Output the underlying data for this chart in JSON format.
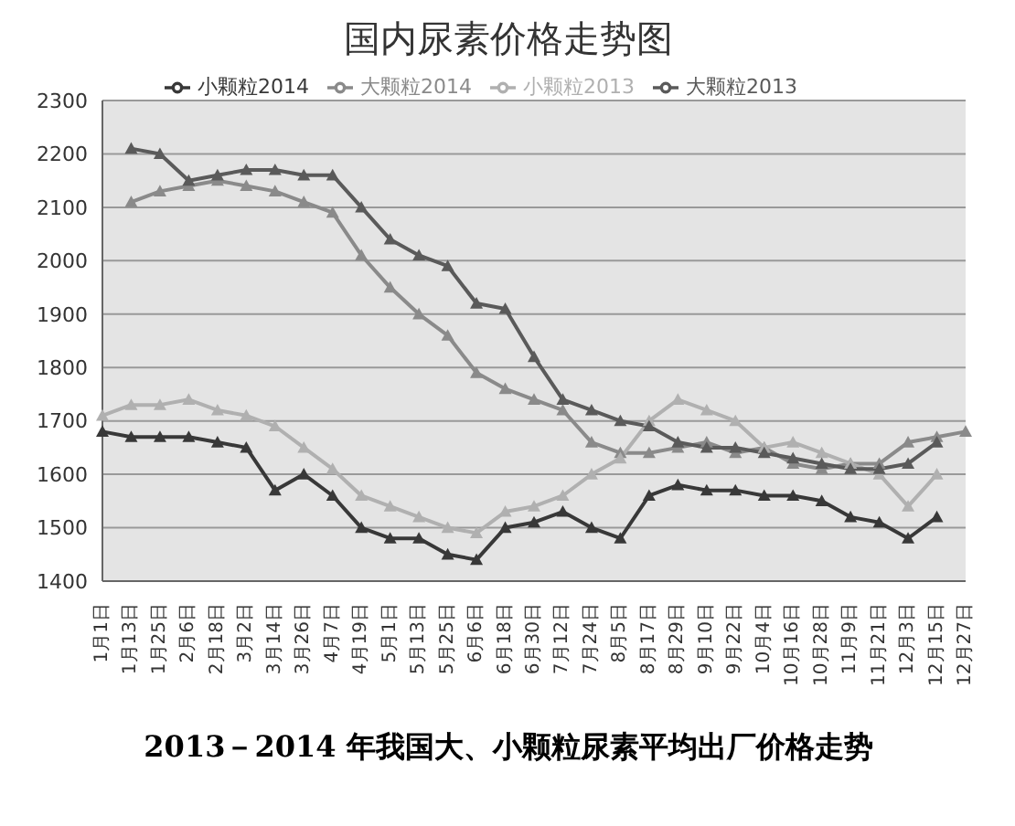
{
  "chart_data": {
    "type": "line",
    "title": "国内尿素价格走势图",
    "categories": [
      "1月1日",
      "1月13日",
      "1月25日",
      "2月6日",
      "2月18日",
      "3月2日",
      "3月14日",
      "3月26日",
      "4月7日",
      "4月19日",
      "5月1日",
      "5月13日",
      "5月25日",
      "6月6日",
      "6月18日",
      "6月30日",
      "7月12日",
      "7月24日",
      "8月5日",
      "8月17日",
      "8月29日",
      "9月10日",
      "9月22日",
      "10月4日",
      "10月16日",
      "10月28日",
      "11月9日",
      "11月21日",
      "12月3日",
      "12月15日",
      "12月27日"
    ],
    "series": [
      {
        "name": "小颗粒2014",
        "color": "#383838",
        "values": [
          1680,
          1670,
          1670,
          1670,
          1660,
          1650,
          1570,
          1600,
          1560,
          1500,
          1480,
          1480,
          1450,
          1440,
          1500,
          1510,
          1530,
          1500,
          1480,
          1560,
          1580,
          1570,
          1570,
          1560,
          1560,
          1550,
          1520,
          1510,
          1480,
          1520,
          null
        ]
      },
      {
        "name": "大颗粒2014",
        "color": "#8a8a8a",
        "values": [
          null,
          2110,
          2130,
          2140,
          2150,
          2140,
          2130,
          2110,
          2090,
          2010,
          1950,
          1900,
          1860,
          1790,
          1760,
          1740,
          1720,
          1660,
          1640,
          1640,
          1650,
          1660,
          1640,
          1650,
          1620,
          1610,
          1620,
          1620,
          1660,
          1670,
          1680
        ]
      },
      {
        "name": "小颗粒2013",
        "color": "#b0b0b0",
        "values": [
          1710,
          1730,
          1730,
          1740,
          1720,
          1710,
          1690,
          1650,
          1610,
          1560,
          1540,
          1520,
          1500,
          1490,
          1530,
          1540,
          1560,
          1600,
          1630,
          1700,
          1740,
          1720,
          1700,
          1650,
          1660,
          1640,
          1620,
          1600,
          1540,
          1600,
          null
        ]
      },
      {
        "name": "大颗粒2013",
        "color": "#5a5a5a",
        "values": [
          null,
          2210,
          2200,
          2150,
          2160,
          2170,
          2170,
          2160,
          2160,
          2100,
          2040,
          2010,
          1990,
          1920,
          1910,
          1820,
          1740,
          1720,
          1700,
          1690,
          1660,
          1650,
          1650,
          1640,
          1630,
          1620,
          1610,
          1610,
          1620,
          1660,
          null
        ]
      }
    ],
    "ylim": [
      1400,
      2300
    ],
    "yticks": [
      1400,
      1500,
      1600,
      1700,
      1800,
      1900,
      2000,
      2100,
      2200,
      2300
    ],
    "grid": "y",
    "legend": "top",
    "marker": "triangle",
    "line_style": "solid",
    "annotations": [
      "2013－2014 年我国大、小颗粒尿素平均出厂价格走势"
    ]
  }
}
